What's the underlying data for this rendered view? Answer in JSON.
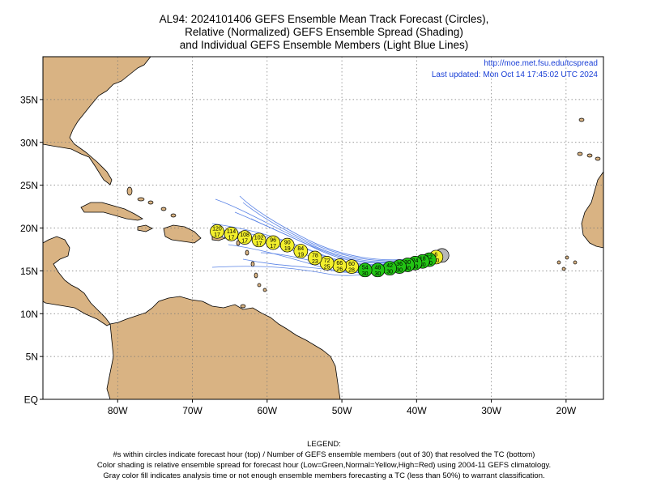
{
  "title": {
    "line1": "AL94: 2024101406 GEFS Ensemble Mean Track Forecast (Circles),",
    "line2": "Relative (Normalized) GEFS Ensemble Spread (Shading)",
    "line3": "and Individual GEFS Ensemble Members (Light Blue Lines)"
  },
  "credit": {
    "url": "http://moe.met.fsu.edu/tcspread",
    "updated": "Last updated: Mon Oct 14 17:45:02 UTC 2024"
  },
  "axes": {
    "lat_labels": [
      "35N",
      "30N",
      "25N",
      "20N",
      "15N",
      "10N",
      "5N",
      "EQ"
    ],
    "lat_values": [
      35,
      30,
      25,
      20,
      15,
      10,
      5,
      0
    ],
    "lon_labels": [
      "80W",
      "70W",
      "60W",
      "50W",
      "40W",
      "30W",
      "20W"
    ],
    "lon_values": [
      -80,
      -70,
      -60,
      -50,
      -40,
      -30,
      -20
    ],
    "lon_range": [
      -90,
      -15
    ],
    "lat_range": [
      0,
      40
    ],
    "grid": "dotted"
  },
  "colors": {
    "land": "#d9b383",
    "ocean": "#ffffff",
    "member_track": "#5b84e6",
    "low_spread": "#22c414",
    "normal_spread": "#f2ef2c",
    "analysis": "#b8b8b8"
  },
  "track": [
    {
      "hour": "",
      "members": "",
      "lon": -36.6,
      "lat": 16.8,
      "spread": "gray"
    },
    {
      "hour": "6",
      "members": "30",
      "lon": -37.4,
      "lat": 16.6,
      "spread": "yellow"
    },
    {
      "hour": "12",
      "members": "30",
      "lon": -38.3,
      "lat": 16.3,
      "spread": "green"
    },
    {
      "hour": "18",
      "members": "30",
      "lon": -39.2,
      "lat": 16.1,
      "spread": "green"
    },
    {
      "hour": "24",
      "members": "30",
      "lon": -40.2,
      "lat": 15.9,
      "spread": "green"
    },
    {
      "hour": "30",
      "members": "30",
      "lon": -41.2,
      "lat": 15.7,
      "spread": "green"
    },
    {
      "hour": "36",
      "members": "30",
      "lon": -42.3,
      "lat": 15.5,
      "spread": "green"
    },
    {
      "hour": "42",
      "members": "30",
      "lon": -43.6,
      "lat": 15.3,
      "spread": "green"
    },
    {
      "hour": "48",
      "members": "30",
      "lon": -45.2,
      "lat": 15.1,
      "spread": "green"
    },
    {
      "hour": "54",
      "members": "30",
      "lon": -46.9,
      "lat": 15.1,
      "spread": "green"
    },
    {
      "hour": "60",
      "members": "28",
      "lon": -48.7,
      "lat": 15.5,
      "spread": "yellow"
    },
    {
      "hour": "66",
      "members": "26",
      "lon": -50.3,
      "lat": 15.6,
      "spread": "yellow"
    },
    {
      "hour": "72",
      "members": "25",
      "lon": -52.0,
      "lat": 15.9,
      "spread": "yellow"
    },
    {
      "hour": "78",
      "members": "23",
      "lon": -53.6,
      "lat": 16.5,
      "spread": "yellow"
    },
    {
      "hour": "84",
      "members": "19",
      "lon": -55.5,
      "lat": 17.3,
      "spread": "yellow"
    },
    {
      "hour": "90",
      "members": "19",
      "lon": -57.3,
      "lat": 18.0,
      "spread": "yellow"
    },
    {
      "hour": "96",
      "members": "17",
      "lon": -59.2,
      "lat": 18.3,
      "spread": "yellow"
    },
    {
      "hour": "102",
      "members": "17",
      "lon": -61.1,
      "lat": 18.6,
      "spread": "yellow"
    },
    {
      "hour": "108",
      "members": "17",
      "lon": -63.0,
      "lat": 18.9,
      "spread": "yellow"
    },
    {
      "hour": "114",
      "members": "17",
      "lon": -64.8,
      "lat": 19.3,
      "spread": "yellow"
    },
    {
      "hour": "120",
      "members": "17",
      "lon": -66.7,
      "lat": 19.6,
      "spread": "yellow"
    }
  ],
  "legend": {
    "heading": "LEGEND:",
    "line1": "#s within circles indicate forecast hour (top) / Number of GEFS ensemble members (out of 30) that resolved the TC (bottom)",
    "line2": "Color shading is relative ensemble spread for forecast hour (Low=Green,Normal=Yellow,High=Red) using 2004-11 GEFS climatology.",
    "line3": "Gray color fill indicates analysis time or not enough ensemble members forecasting a TC (less than 50%) to warrant classification."
  }
}
